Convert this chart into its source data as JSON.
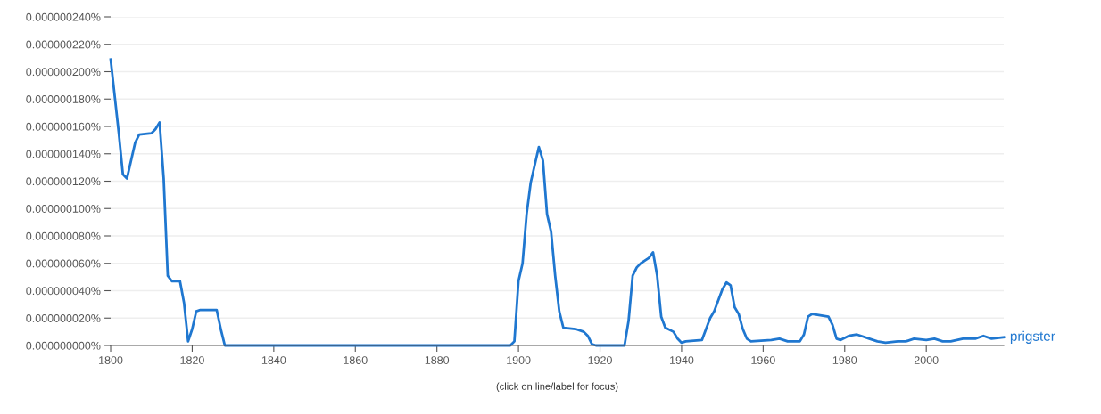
{
  "chart_data": {
    "type": "line",
    "x": [
      1800,
      1802,
      1803,
      1804,
      1806,
      1807,
      1810,
      1811,
      1812,
      1813,
      1814,
      1815,
      1817,
      1818,
      1819,
      1820,
      1821,
      1822,
      1826,
      1827,
      1828,
      1898,
      1899,
      1900,
      1901,
      1902,
      1903,
      1905,
      1906,
      1907,
      1908,
      1909,
      1910,
      1911,
      1914,
      1916,
      1917,
      1918,
      1919,
      1926,
      1927,
      1928,
      1929,
      1930,
      1931,
      1932,
      1933,
      1934,
      1935,
      1936,
      1938,
      1939,
      1940,
      1941,
      1945,
      1946,
      1947,
      1948,
      1950,
      1951,
      1952,
      1953,
      1954,
      1955,
      1956,
      1957,
      1962,
      1964,
      1966,
      1969,
      1970,
      1971,
      1972,
      1976,
      1977,
      1978,
      1979,
      1981,
      1983,
      1984,
      1986,
      1988,
      1990,
      1993,
      1995,
      1997,
      2000,
      2002,
      2004,
      2006,
      2009,
      2012,
      2014,
      2016,
      2019
    ],
    "series": [
      {
        "name": "prigster",
        "color": "#1f77d0",
        "values": [
          2.09e-07,
          1.55e-07,
          1.25e-07,
          1.22e-07,
          1.48e-07,
          1.54e-07,
          1.55e-07,
          1.58e-07,
          1.63e-07,
          1.22e-07,
          5.1e-08,
          4.7e-08,
          4.7e-08,
          3.1e-08,
          3e-09,
          1.2e-08,
          2.5e-08,
          2.6e-08,
          2.6e-08,
          1.2e-08,
          0,
          0,
          3e-09,
          4.7e-08,
          6e-08,
          9.6e-08,
          1.19e-07,
          1.45e-07,
          1.35e-07,
          9.6e-08,
          8.3e-08,
          5.1e-08,
          2.5e-08,
          1.3e-08,
          1.2e-08,
          1e-08,
          7e-09,
          1e-09,
          0,
          0,
          1.8e-08,
          5.1e-08,
          5.7e-08,
          6e-08,
          6.2e-08,
          6.4e-08,
          6.8e-08,
          5.1e-08,
          2.1e-08,
          1.3e-08,
          1e-08,
          5e-09,
          2e-09,
          3e-09,
          4e-09,
          1.2e-08,
          2e-08,
          2.5e-08,
          4.1e-08,
          4.6e-08,
          4.4e-08,
          2.8e-08,
          2.3e-08,
          1.2e-08,
          5e-09,
          3e-09,
          4e-09,
          5e-09,
          3e-09,
          3e-09,
          8e-09,
          2.1e-08,
          2.3e-08,
          2.1e-08,
          1.5e-08,
          5e-09,
          4e-09,
          7e-09,
          8e-09,
          7e-09,
          5e-09,
          3e-09,
          2e-09,
          3e-09,
          3e-09,
          5e-09,
          4e-09,
          5e-09,
          3e-09,
          3e-09,
          5e-09,
          5e-09,
          7e-09,
          5e-09,
          6e-09
        ]
      }
    ],
    "xlim": [
      1800,
      2019
    ],
    "xticks": [
      1800,
      1820,
      1840,
      1860,
      1880,
      1900,
      1920,
      1940,
      1960,
      1980,
      2000
    ],
    "ylim": [
      0,
      2.4e-07
    ],
    "yticks": [
      {
        "value": 0,
        "label": "0.000000000%"
      },
      {
        "value": 2e-08,
        "label": "0.000000020%"
      },
      {
        "value": 4e-08,
        "label": "0.000000040%"
      },
      {
        "value": 6e-08,
        "label": "0.000000060%"
      },
      {
        "value": 8e-08,
        "label": "0.000000080%"
      },
      {
        "value": 1e-07,
        "label": "0.000000100%"
      },
      {
        "value": 1.2e-07,
        "label": "0.000000120%"
      },
      {
        "value": 1.4e-07,
        "label": "0.000000140%"
      },
      {
        "value": 1.6e-07,
        "label": "0.000000160%"
      },
      {
        "value": 1.8e-07,
        "label": "0.000000180%"
      },
      {
        "value": 2e-07,
        "label": "0.000000200%"
      },
      {
        "value": 2.2e-07,
        "label": "0.000000220%"
      },
      {
        "value": 2.4e-07,
        "label": "0.000000240%"
      }
    ],
    "grid": "y",
    "annotations": [
      "(click on line/label for focus)"
    ]
  }
}
